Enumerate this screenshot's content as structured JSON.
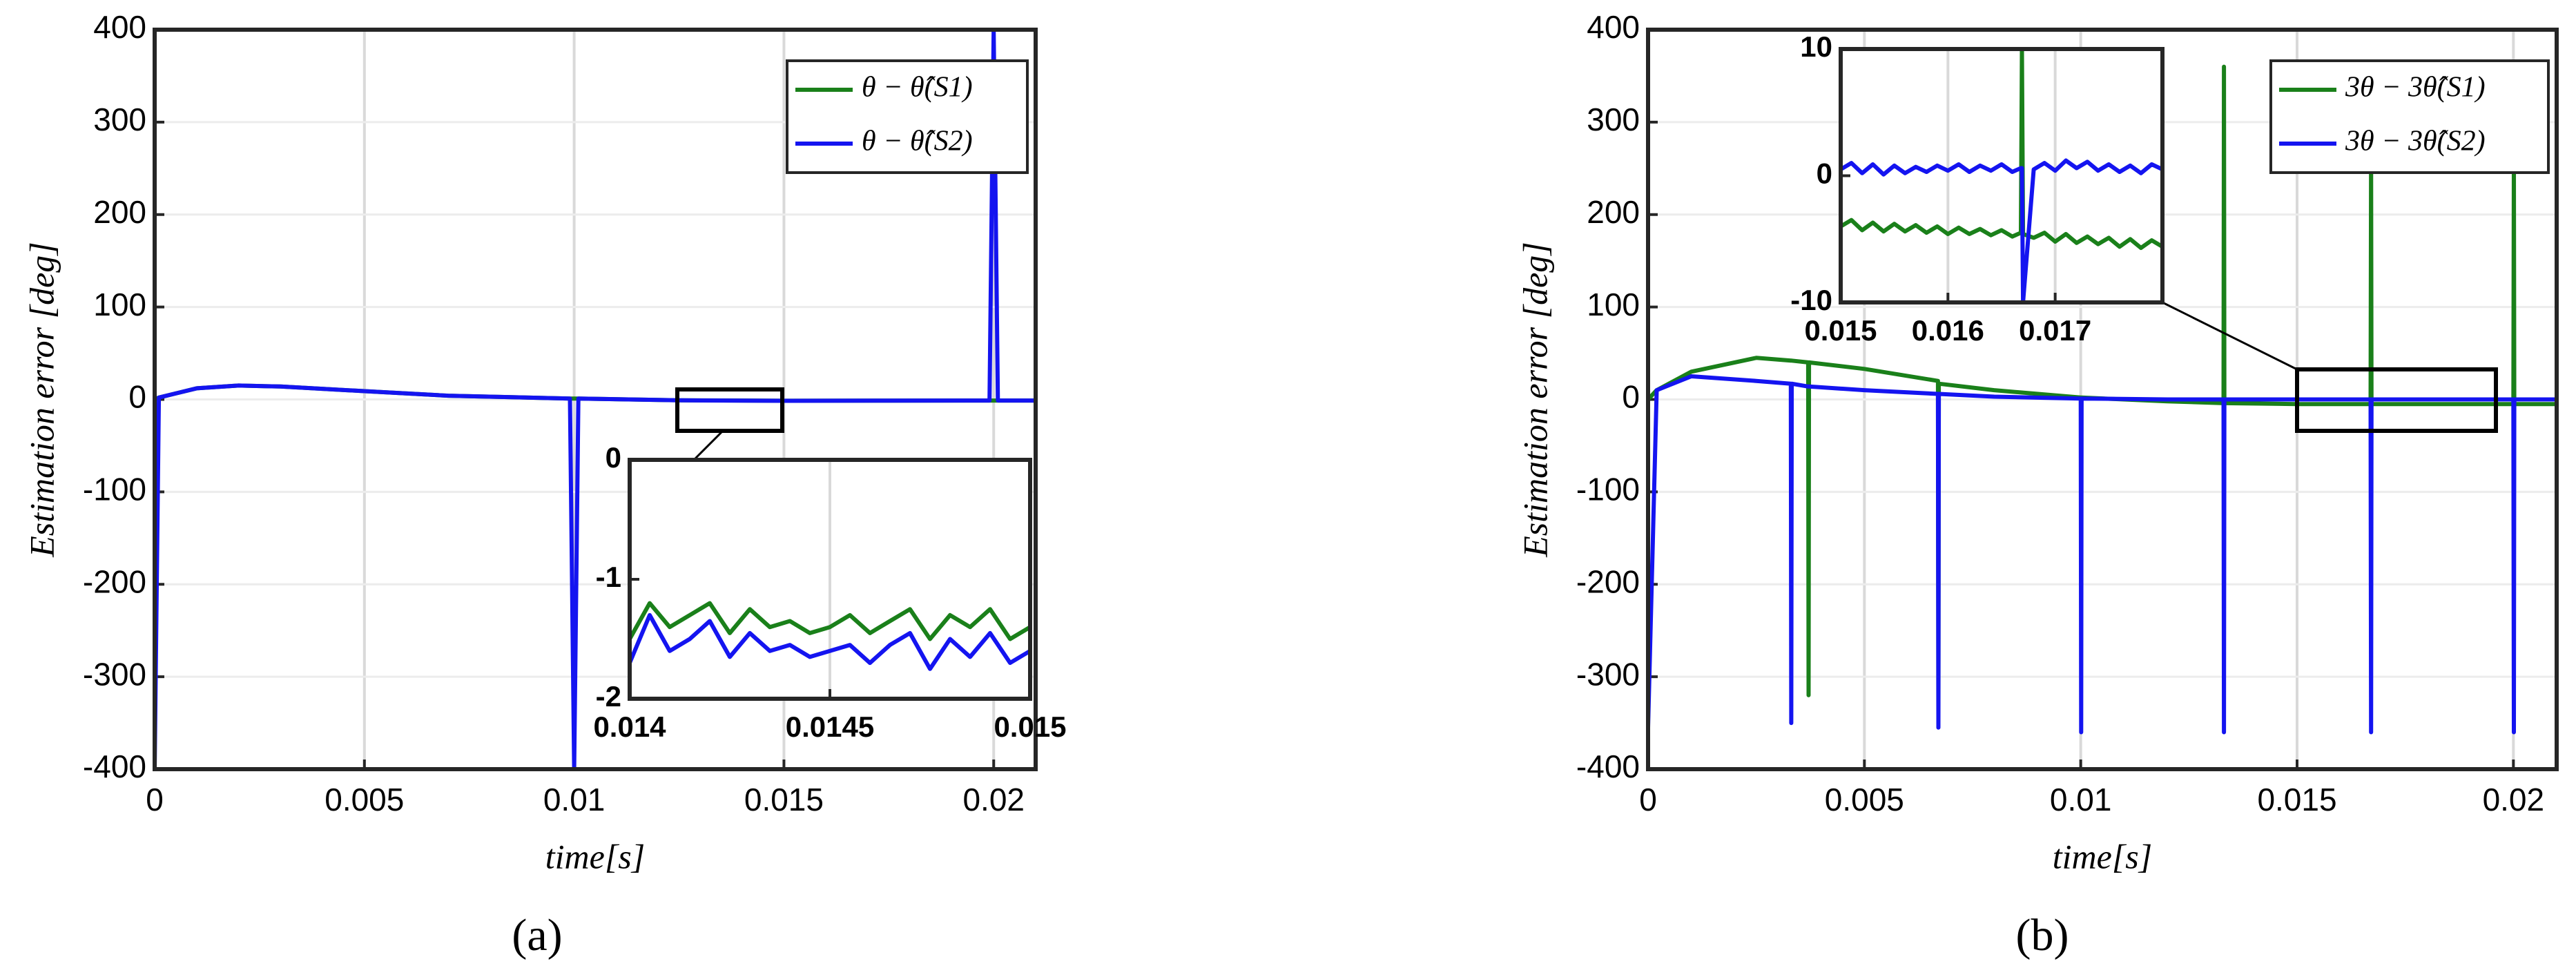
{
  "chart_data": [
    {
      "type": "line",
      "caption": "(a)",
      "x_label": "time[s]",
      "y_label": "Estimation error [deg]",
      "xlim": [
        0,
        0.021
      ],
      "xticks": [
        0,
        0.005,
        0.01,
        0.015,
        0.02
      ],
      "ylim": [
        -400,
        400
      ],
      "yticks": [
        -400,
        -300,
        -200,
        -100,
        0,
        100,
        200,
        300,
        400
      ],
      "grid": true,
      "legend": "northeast",
      "x": [
        0,
        0.0001,
        0.001,
        0.002,
        0.003,
        0.005,
        0.007,
        0.0099,
        0.01,
        0.0101,
        0.0125,
        0.015,
        0.0175,
        0.0199,
        0.02,
        0.0201,
        0.021
      ],
      "series": [
        {
          "name": "θ − θ̂(S1)",
          "color": "#1a801a",
          "values": [
            0,
            2,
            12,
            15,
            14,
            9,
            4,
            1,
            1,
            1,
            -1,
            -1.4,
            -1.3,
            -1.2,
            -1.2,
            -1.2,
            -1.2
          ]
        },
        {
          "name": "θ − θ̂(S2)",
          "color": "#1414f0",
          "values": [
            -400,
            2,
            12,
            15,
            14,
            9,
            4,
            1,
            -400,
            1,
            -1,
            -1.5,
            -1.3,
            -1.2,
            400,
            -1.2,
            -1.2
          ]
        }
      ]
    },
    {
      "type": "line",
      "xlim": [
        0.014,
        0.015
      ],
      "xticks": [
        0.014,
        0.0145,
        0.015
      ],
      "ylim": [
        -2,
        0
      ],
      "yticks": [
        -2,
        -1,
        0
      ],
      "grid": true,
      "x": [
        0.014,
        0.01405,
        0.0141,
        0.01415,
        0.0142,
        0.01425,
        0.0143,
        0.01435,
        0.0144,
        0.01445,
        0.0145,
        0.01455,
        0.0146,
        0.01465,
        0.0147,
        0.01475,
        0.0148,
        0.01485,
        0.0149,
        0.01495,
        0.015
      ],
      "series": [
        {
          "color": "#1a801a",
          "values": [
            -1.5,
            -1.2,
            -1.4,
            -1.3,
            -1.2,
            -1.45,
            -1.25,
            -1.4,
            -1.35,
            -1.45,
            -1.4,
            -1.3,
            -1.45,
            -1.35,
            -1.25,
            -1.5,
            -1.3,
            -1.4,
            -1.25,
            -1.5,
            -1.4
          ]
        },
        {
          "color": "#1414f0",
          "values": [
            -1.7,
            -1.3,
            -1.6,
            -1.5,
            -1.35,
            -1.65,
            -1.45,
            -1.6,
            -1.55,
            -1.65,
            -1.6,
            -1.55,
            -1.7,
            -1.55,
            -1.45,
            -1.75,
            -1.5,
            -1.65,
            -1.45,
            -1.7,
            -1.6
          ]
        }
      ]
    },
    {
      "type": "line",
      "caption": "(b)",
      "x_label": "time[s]",
      "y_label": "Estimation error [deg]",
      "xlim": [
        0,
        0.021
      ],
      "xticks": [
        0,
        0.005,
        0.01,
        0.015,
        0.02
      ],
      "ylim": [
        -400,
        400
      ],
      "yticks": [
        -400,
        -300,
        -200,
        -100,
        0,
        100,
        200,
        300,
        400
      ],
      "grid": true,
      "legend": "northeast",
      "x": [
        0,
        0.0002,
        0.001,
        0.0025,
        0.0033,
        0.00331,
        0.00332,
        0.0037,
        0.00371,
        0.00372,
        0.005,
        0.0067,
        0.00671,
        0.00672,
        0.008,
        0.01,
        0.01001,
        0.01002,
        0.012,
        0.0133,
        0.01331,
        0.01332,
        0.015,
        0.0167,
        0.01671,
        0.01672,
        0.0185,
        0.02,
        0.02001,
        0.02002,
        0.021
      ],
      "series": [
        {
          "name": "3θ − 3θ̂(S1)",
          "color": "#1a801a",
          "values": [
            0,
            10,
            30,
            45,
            42,
            42,
            42,
            40,
            -320,
            40,
            33,
            20,
            -345,
            17,
            10,
            2,
            2,
            2,
            -2,
            -4,
            360,
            -4,
            -5,
            -5,
            260,
            -5,
            -5,
            -5,
            260,
            -5,
            -5
          ]
        },
        {
          "name": "3θ − 3θ̂(S2)",
          "color": "#1414f0",
          "values": [
            -355,
            10,
            25,
            20,
            17,
            -350,
            17,
            14,
            14,
            14,
            10,
            6,
            -355,
            6,
            3,
            1,
            -360,
            1,
            0,
            0,
            -360,
            0,
            0,
            0,
            -360,
            0,
            0,
            0,
            -360,
            0,
            0
          ]
        }
      ]
    },
    {
      "type": "line",
      "xlim": [
        0.015,
        0.018
      ],
      "xticks": [
        0.015,
        0.016,
        0.017
      ],
      "ylim": [
        -10,
        10
      ],
      "yticks": [
        -10,
        0,
        10
      ],
      "grid": true,
      "x": [
        0.015,
        0.0151,
        0.0152,
        0.0153,
        0.0154,
        0.0155,
        0.0156,
        0.0157,
        0.0158,
        0.0159,
        0.016,
        0.0161,
        0.0162,
        0.0163,
        0.0164,
        0.0165,
        0.0166,
        0.01668,
        0.01669,
        0.0167,
        0.0168,
        0.0169,
        0.017,
        0.0171,
        0.0172,
        0.0173,
        0.0174,
        0.0175,
        0.0176,
        0.0177,
        0.0178,
        0.0179,
        0.018
      ],
      "series": [
        {
          "color": "#1a801a",
          "values": [
            -4,
            -3.5,
            -4.3,
            -3.7,
            -4.4,
            -3.8,
            -4.4,
            -3.9,
            -4.5,
            -4,
            -4.6,
            -4.1,
            -4.6,
            -4.2,
            -4.7,
            -4.3,
            -4.8,
            -4.5,
            10,
            -4.6,
            -4.9,
            -4.5,
            -5.2,
            -4.6,
            -5.3,
            -4.8,
            -5.4,
            -4.9,
            -5.6,
            -5,
            -5.7,
            -5.1,
            -5.6
          ]
        },
        {
          "color": "#1414f0",
          "values": [
            0.5,
            1,
            0.2,
            0.9,
            0.1,
            0.8,
            0.2,
            0.7,
            0.3,
            0.8,
            0.4,
            0.9,
            0.3,
            0.8,
            0.4,
            0.9,
            0.3,
            0.6,
            0.6,
            -10,
            0.5,
            1,
            0.4,
            1.2,
            0.6,
            1.1,
            0.4,
            0.9,
            0.3,
            0.8,
            0.2,
            0.9,
            0.5
          ]
        }
      ]
    }
  ]
}
